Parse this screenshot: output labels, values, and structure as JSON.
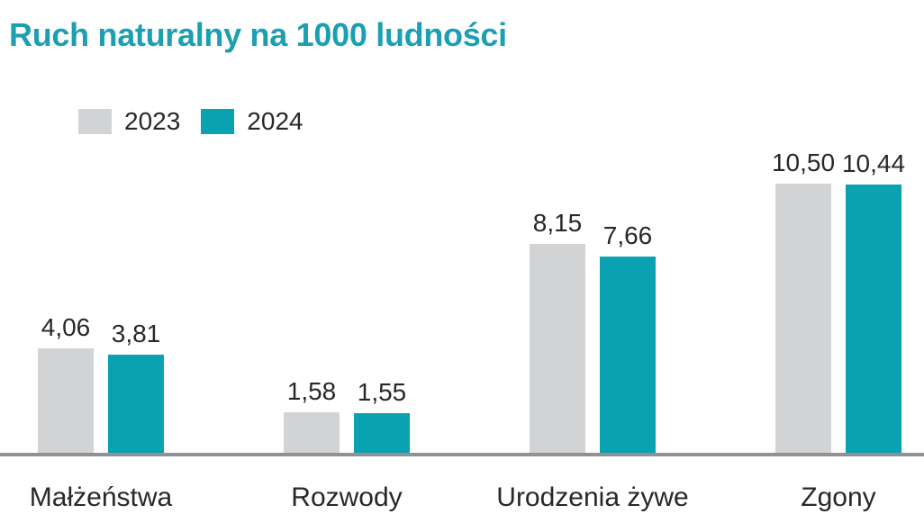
{
  "title": {
    "text": "Ruch naturalny na 1000 ludności",
    "color": "#1b9fb1"
  },
  "legend": {
    "items": [
      {
        "label": "2023",
        "color": "#d2d3d4"
      },
      {
        "label": "2024",
        "color": "#0aa2b0"
      }
    ]
  },
  "chart_data": {
    "type": "bar",
    "title": "Ruch naturalny na 1000 ludności",
    "categories": [
      "Małżeństwa",
      "Rozwody",
      "Urodzenia żywe",
      "Zgony"
    ],
    "series": [
      {
        "name": "2023",
        "color": "#d2d3d4",
        "values": [
          4.06,
          1.58,
          8.15,
          10.5
        ],
        "value_labels": [
          "4,06",
          "1,58",
          "8,15",
          "10,50"
        ]
      },
      {
        "name": "2024",
        "color": "#0aa2b0",
        "values": [
          3.81,
          1.55,
          7.66,
          10.44
        ],
        "value_labels": [
          "3,81",
          "1,55",
          "7,66",
          "10,44"
        ]
      }
    ],
    "ylim": [
      0,
      11
    ],
    "grid": false,
    "y_axis_shown": false,
    "legend_position": "top-left",
    "value_labels_shown": true,
    "axis_line_color": "#909193",
    "text_color": "#2a2727",
    "xlabel": "",
    "ylabel": ""
  }
}
